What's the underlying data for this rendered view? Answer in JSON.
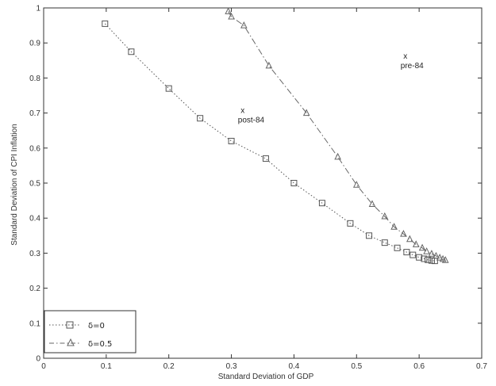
{
  "chart_data": {
    "type": "line",
    "xlabel": "Standard Deviation of GDP",
    "ylabel": "Standard Deviation of CPI Inflation",
    "xlim": [
      0,
      0.7
    ],
    "ylim": [
      0,
      1
    ],
    "xticks": [
      "0",
      "0.1",
      "0.2",
      "0.3",
      "0.4",
      "0.5",
      "0.6",
      "0.7"
    ],
    "yticks": [
      "0",
      "0.1",
      "0.2",
      "0.3",
      "0.4",
      "0.5",
      "0.6",
      "0.7",
      "0.8",
      "0.9",
      "1"
    ],
    "grid": false,
    "legend_position": "bottom-left",
    "series": [
      {
        "name": "δ=0",
        "marker": "square",
        "linestyle": "dotted",
        "color": "#555555",
        "x": [
          0.098,
          0.14,
          0.2,
          0.25,
          0.3,
          0.355,
          0.4,
          0.445,
          0.49,
          0.52,
          0.545,
          0.565,
          0.58,
          0.59,
          0.6,
          0.608,
          0.614,
          0.62,
          0.625
        ],
        "y": [
          0.955,
          0.875,
          0.77,
          0.685,
          0.62,
          0.57,
          0.5,
          0.443,
          0.385,
          0.35,
          0.33,
          0.315,
          0.303,
          0.295,
          0.288,
          0.284,
          0.281,
          0.279,
          0.278
        ]
      },
      {
        "name": "δ=0.5",
        "marker": "triangle",
        "linestyle": "dashdot",
        "color": "#666666",
        "x": [
          0.295,
          0.3,
          0.32,
          0.36,
          0.42,
          0.47,
          0.5,
          0.525,
          0.545,
          0.56,
          0.575,
          0.585,
          0.595,
          0.605,
          0.612,
          0.62,
          0.627,
          0.633,
          0.638,
          0.642
        ],
        "y": [
          0.99,
          0.975,
          0.95,
          0.835,
          0.7,
          0.575,
          0.495,
          0.44,
          0.405,
          0.375,
          0.355,
          0.34,
          0.325,
          0.315,
          0.305,
          0.298,
          0.292,
          0.287,
          0.283,
          0.28
        ]
      }
    ],
    "annotations": [
      {
        "marker": "x",
        "label": "pre-84",
        "x": 0.578,
        "y": 0.855
      },
      {
        "marker": "x",
        "label": "post-84",
        "x": 0.318,
        "y": 0.7
      }
    ]
  }
}
